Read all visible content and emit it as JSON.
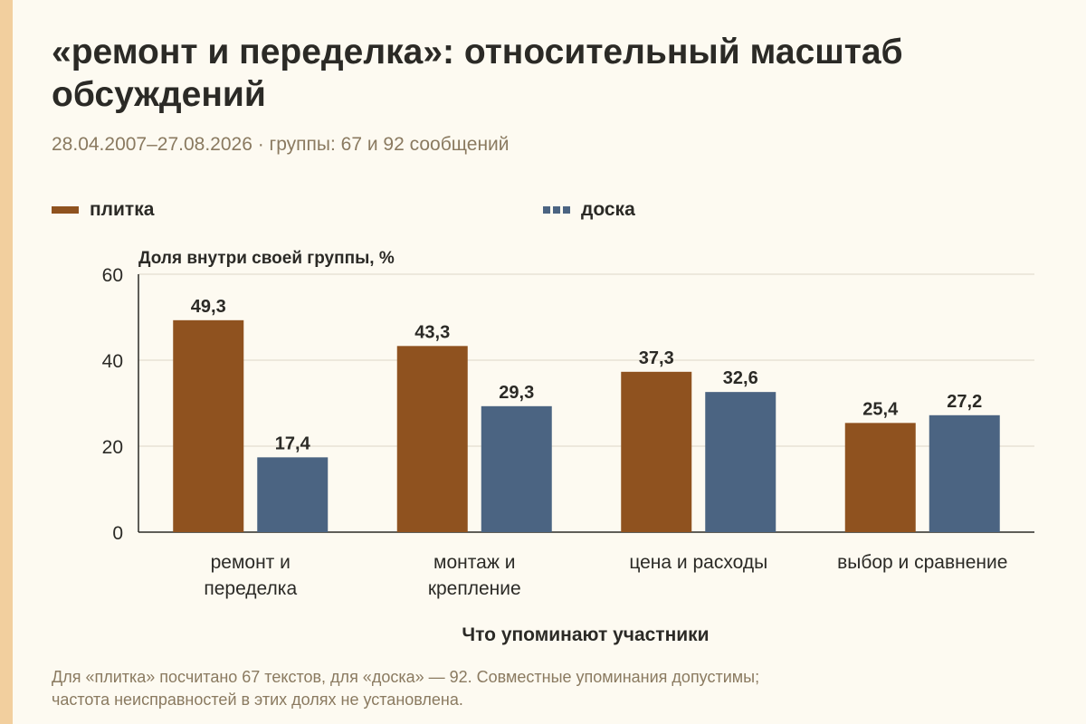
{
  "title": "«ремонт и переделка»: относительный масштаб обсуждений",
  "subtitle": "28.04.2007–27.08.2026 · группы: 67 и 92 сообщений",
  "footnote_line1": "Для «плитка» посчитано 67 текстов, для «доска» — 92. Совместные упоминания допустимы;",
  "footnote_line2": "частота неисправностей в этих долях не установлена.",
  "colors": {
    "plitka": "#8f521f",
    "doska": "#4b6482",
    "accent": "#f2cf9e"
  },
  "chart_data": {
    "type": "bar",
    "title": "«ремонт и переделка»: относительный масштаб обсуждений",
    "subtitle": "28.04.2007–27.08.2026 · группы: 67 и 92 сообщений",
    "xlabel": "Что упоминают участники",
    "ylabel": "Доля внутри своей группы, %",
    "ylim": [
      0,
      60
    ],
    "yticks": [
      0,
      20,
      40,
      60
    ],
    "grid": true,
    "legend_position": "top-left",
    "categories": [
      [
        "ремонт и",
        "переделка"
      ],
      [
        "монтаж и",
        "крепление"
      ],
      [
        "цена и расходы"
      ],
      [
        "выбор и сравнение"
      ]
    ],
    "series": [
      {
        "name": "плитка",
        "values": [
          49.3,
          43.3,
          37.3,
          25.4
        ],
        "labels": [
          "49,3",
          "43,3",
          "37,3",
          "25,4"
        ]
      },
      {
        "name": "доска",
        "values": [
          17.4,
          29.3,
          32.6,
          27.2
        ],
        "labels": [
          "17,4",
          "29,3",
          "32,6",
          "27,2"
        ]
      }
    ]
  }
}
